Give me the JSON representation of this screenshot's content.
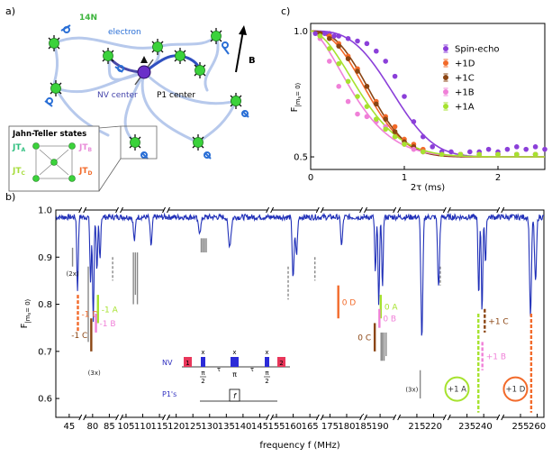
{
  "panel_labels": {
    "a": "a)",
    "b": "b)",
    "c": "c)"
  },
  "panel_a": {
    "labels": {
      "n14": "14N",
      "electron": "electron",
      "nv": "NV center",
      "p1": "P1 center",
      "b": "B"
    },
    "jahn_teller": {
      "title": "Jahn-Teller states",
      "states": [
        {
          "main": "JT",
          "sub": "A",
          "color": "#2fbf7f"
        },
        {
          "main": "JT",
          "sub": "B",
          "color": "#e88ad8"
        },
        {
          "main": "JT",
          "sub": "C",
          "color": "#a6dc3a"
        },
        {
          "main": "JT",
          "sub": "D",
          "color": "#f26a2a"
        }
      ]
    }
  },
  "chart_data": [
    {
      "id": "panel-c",
      "type": "scatter",
      "xlabel": "2τ (ms)",
      "ylabel_main": "F",
      "ylabel_sub": "|m",
      "ylabel_sub2": "s",
      "ylabel_tail": "= 0⟩",
      "xlim": [
        0,
        2.5
      ],
      "ylim": [
        0.45,
        1.03
      ],
      "xticks": [
        0,
        1,
        2
      ],
      "xtick_labels": [
        "0",
        "1",
        "2"
      ],
      "yticks": [
        0.5,
        1.0
      ],
      "ytick_labels": [
        "0.5",
        "1.0"
      ],
      "legend_position": "top-right",
      "series": [
        {
          "name": "Spin-echo",
          "color": "#8b3fd9",
          "T": 1.0,
          "n": 3,
          "x": [
            0.05,
            0.1,
            0.15,
            0.2,
            0.25,
            0.3,
            0.4,
            0.5,
            0.6,
            0.7,
            0.8,
            0.9,
            1.0,
            1.1,
            1.2,
            1.3,
            1.4,
            1.5,
            1.6,
            1.7,
            1.8,
            1.9,
            2.0,
            2.1,
            2.2,
            2.3,
            2.4,
            2.5
          ],
          "y": [
            0.99,
            0.99,
            0.99,
            0.99,
            0.98,
            0.98,
            0.97,
            0.96,
            0.95,
            0.92,
            0.88,
            0.82,
            0.74,
            0.64,
            0.58,
            0.54,
            0.52,
            0.52,
            0.51,
            0.52,
            0.52,
            0.53,
            0.52,
            0.53,
            0.54,
            0.53,
            0.54,
            0.53
          ]
        },
        {
          "name": "+1D",
          "color": "#f26a2a",
          "T": 0.72,
          "n": 2.3,
          "x": [
            0.1,
            0.2,
            0.3,
            0.4,
            0.5,
            0.6,
            0.7,
            0.8,
            0.9,
            1.0,
            1.1,
            1.2,
            1.4,
            1.6,
            1.8,
            2.0,
            2.2,
            2.4
          ],
          "y": [
            0.99,
            0.98,
            0.95,
            0.9,
            0.85,
            0.78,
            0.72,
            0.66,
            0.62,
            0.57,
            0.55,
            0.53,
            0.51,
            0.51,
            0.51,
            0.51,
            0.51,
            0.51
          ]
        },
        {
          "name": "+1C",
          "color": "#8b4513",
          "T": 0.75,
          "n": 2.5,
          "x": [
            0.1,
            0.2,
            0.3,
            0.4,
            0.5,
            0.6,
            0.7,
            0.8,
            0.9,
            1.0,
            1.1,
            1.2,
            1.4,
            1.6,
            1.8,
            2.0,
            2.2,
            2.4
          ],
          "y": [
            0.99,
            0.97,
            0.94,
            0.89,
            0.84,
            0.78,
            0.71,
            0.65,
            0.6,
            0.56,
            0.54,
            0.52,
            0.51,
            0.51,
            0.51,
            0.51,
            0.51,
            0.51
          ]
        },
        {
          "name": "+1B",
          "color": "#f080d8",
          "T": 0.58,
          "n": 1.6,
          "x": [
            0.1,
            0.2,
            0.3,
            0.4,
            0.5,
            0.6,
            0.7,
            0.8,
            0.9,
            1.0,
            1.1,
            1.2,
            1.4,
            1.6,
            1.8,
            2.0,
            2.2,
            2.4
          ],
          "y": [
            0.97,
            0.88,
            0.78,
            0.72,
            0.67,
            0.66,
            0.64,
            0.62,
            0.58,
            0.55,
            0.53,
            0.52,
            0.51,
            0.51,
            0.51,
            0.51,
            0.51,
            0.51
          ]
        },
        {
          "name": "+1A",
          "color": "#a6e22e",
          "T": 0.66,
          "n": 1.8,
          "x": [
            0.1,
            0.2,
            0.3,
            0.4,
            0.5,
            0.6,
            0.7,
            0.8,
            0.9,
            1.0,
            1.2,
            1.4,
            1.6,
            1.8,
            2.0,
            2.2,
            2.4
          ],
          "y": [
            0.98,
            0.93,
            0.87,
            0.8,
            0.74,
            0.7,
            0.65,
            0.61,
            0.58,
            0.55,
            0.52,
            0.51,
            0.51,
            0.51,
            0.51,
            0.51,
            0.51
          ]
        }
      ]
    },
    {
      "id": "panel-b",
      "type": "line",
      "xlabel": "frequency f (MHz)",
      "ylabel_main": "F",
      "ylabel_sub": "|m",
      "ylabel_sub2": "s",
      "ylabel_tail": "= 0⟩",
      "ylim": [
        0.56,
        1.0
      ],
      "yticks": [
        0.6,
        0.7,
        0.8,
        0.9,
        1.0
      ],
      "ytick_labels": [
        "0.6",
        "0.7",
        "0.8",
        "0.9",
        "1.0"
      ],
      "line_color": "#2030b8",
      "segments": [
        {
          "range": [
            41,
            49
          ],
          "ticks": [
            45
          ],
          "dips": [
            {
              "f": 47.5,
              "d": 0.16,
              "w": 0.3
            }
          ]
        },
        {
          "range": [
            77,
            88
          ],
          "ticks": [
            80,
            85
          ],
          "dips": [
            {
              "f": 79.4,
              "d": 0.14,
              "w": 0.3
            },
            {
              "f": 80.2,
              "d": 0.22,
              "w": 0.3
            },
            {
              "f": 81.3,
              "d": 0.12,
              "w": 0.3
            },
            {
              "f": 82.2,
              "d": 0.09,
              "w": 0.3
            }
          ]
        },
        {
          "range": [
            103,
            117
          ],
          "ticks": [
            105,
            110,
            115
          ],
          "dips": [
            {
              "f": 107.5,
              "d": 0.05,
              "w": 0.4
            },
            {
              "f": 112.5,
              "d": 0.06,
              "w": 0.4
            }
          ]
        },
        {
          "range": [
            117,
            148
          ],
          "ticks": [
            120,
            125,
            130,
            135,
            140,
            145
          ],
          "dips": [
            {
              "f": 127,
              "d": 0.03,
              "w": 0.6
            },
            {
              "f": 136,
              "d": 0.06,
              "w": 0.6
            }
          ]
        },
        {
          "range": [
            153,
            168
          ],
          "ticks": [
            155,
            160,
            165
          ],
          "dips": [
            {
              "f": 160,
              "d": 0.13,
              "w": 0.4
            },
            {
              "f": 161,
              "d": 0.08,
              "w": 0.4
            }
          ]
        },
        {
          "range": [
            172,
            185
          ],
          "ticks": [
            175,
            180
          ],
          "dips": [
            {
              "f": 178.5,
              "d": 0.06,
              "w": 0.4
            }
          ]
        },
        {
          "range": [
            185,
            195
          ],
          "ticks": [
            185,
            190
          ],
          "dips": [
            {
              "f": 188.6,
              "d": 0.12,
              "w": 0.3
            },
            {
              "f": 189.6,
              "d": 0.19,
              "w": 0.3
            },
            {
              "f": 190.7,
              "d": 0.15,
              "w": 0.3
            }
          ]
        },
        {
          "range": [
            209,
            224
          ],
          "ticks": [
            215,
            220
          ],
          "dips": [
            {
              "f": 216.5,
              "d": 0.26,
              "w": 0.4
            },
            {
              "f": 221.5,
              "d": 0.15,
              "w": 0.4
            }
          ]
        },
        {
          "range": [
            229,
            245
          ],
          "ticks": [
            235,
            240
          ],
          "dips": [
            {
              "f": 238.5,
              "d": 0.17,
              "w": 0.3
            },
            {
              "f": 239.5,
              "d": 0.2,
              "w": 0.3
            },
            {
              "f": 240.5,
              "d": 0.1,
              "w": 0.3
            }
          ]
        },
        {
          "range": [
            249,
            262
          ],
          "ticks": [
            255,
            260
          ],
          "dips": [
            {
              "f": 258,
              "d": 0.21,
              "w": 0.4
            },
            {
              "f": 259.5,
              "d": 0.14,
              "w": 0.4
            }
          ]
        }
      ],
      "annotations": [
        {
          "text": "-1 D",
          "color": "#f26a2a",
          "f": 47.6,
          "y0": 0.82,
          "y1": 0.74,
          "dashed": true,
          "side": "right"
        },
        {
          "text": "-1 C",
          "color": "#8b4513",
          "f": 79.6,
          "y0": 0.77,
          "y1": 0.7,
          "dashed": false,
          "side": "left"
        },
        {
          "text": "-1 A",
          "color": "#a6e22e",
          "f": 81.6,
          "y0": 0.82,
          "y1": 0.76,
          "dashed": false,
          "side": "right"
        },
        {
          "text": "-1 B",
          "color": "#f080d8",
          "f": 81.0,
          "y0": 0.78,
          "y1": 0.74,
          "dashed": false,
          "side": "right"
        },
        {
          "text": "0 D",
          "color": "#f26a2a",
          "f": 177.5,
          "y0": 0.84,
          "y1": 0.77,
          "dashed": false,
          "side": "right"
        },
        {
          "text": "0 C",
          "color": "#8b4513",
          "f": 188.4,
          "y0": 0.76,
          "y1": 0.7,
          "dashed": false,
          "side": "left"
        },
        {
          "text": "0 A",
          "color": "#a6e22e",
          "f": 190.2,
          "y0": 0.82,
          "y1": 0.77,
          "dashed": false,
          "side": "right"
        },
        {
          "text": "0 B",
          "color": "#f080d8",
          "f": 189.8,
          "y0": 0.79,
          "y1": 0.75,
          "dashed": false,
          "side": "right"
        },
        {
          "text": "+1 C",
          "color": "#8b4513",
          "f": 240.3,
          "y0": 0.79,
          "y1": 0.74,
          "dashed": true,
          "side": "right"
        },
        {
          "text": "+1 B",
          "color": "#f080d8",
          "f": 239.6,
          "y0": 0.72,
          "y1": 0.66,
          "dashed": true,
          "side": "right"
        }
      ],
      "grey_markers": [
        {
          "f": 46.0,
          "y0": 0.92,
          "y1": 0.88,
          "dashed": false
        },
        {
          "f": 78.7,
          "y0": 0.88,
          "y1": 0.72,
          "dashed": false
        },
        {
          "f": 86.0,
          "y0": 0.9,
          "y1": 0.85,
          "dashed": true
        },
        {
          "f": 107.2,
          "y0": 0.91,
          "y1": 0.8,
          "dashed": false
        },
        {
          "f": 107.8,
          "y0": 0.91,
          "y1": 0.82,
          "dashed": false
        },
        {
          "f": 108.4,
          "y0": 0.91,
          "y1": 0.8,
          "dashed": false
        },
        {
          "f": 127.5,
          "y0": 0.94,
          "y1": 0.91,
          "dashed": false
        },
        {
          "f": 128.0,
          "y0": 0.94,
          "y1": 0.91,
          "dashed": false
        },
        {
          "f": 128.5,
          "y0": 0.94,
          "y1": 0.91,
          "dashed": false
        },
        {
          "f": 129.0,
          "y0": 0.94,
          "y1": 0.91,
          "dashed": false
        },
        {
          "f": 158.5,
          "y0": 0.88,
          "y1": 0.81,
          "dashed": true
        },
        {
          "f": 166.5,
          "y0": 0.9,
          "y1": 0.85,
          "dashed": true
        },
        {
          "f": 190.3,
          "y0": 0.74,
          "y1": 0.68,
          "dashed": false
        },
        {
          "f": 190.7,
          "y0": 0.74,
          "y1": 0.68,
          "dashed": false
        },
        {
          "f": 191.2,
          "y0": 0.74,
          "y1": 0.68,
          "dashed": false
        },
        {
          "f": 191.8,
          "y0": 0.74,
          "y1": 0.69,
          "dashed": false
        },
        {
          "f": 216.0,
          "y0": 0.66,
          "y1": 0.6,
          "dashed": false
        },
        {
          "f": 222.0,
          "y0": 0.88,
          "y1": 0.84,
          "dashed": true
        }
      ],
      "multiplicity": [
        {
          "text": "(2x)",
          "f": 46.0,
          "y": 0.86
        },
        {
          "text": "(3x)",
          "f": 80.5,
          "y": 0.65
        },
        {
          "text": "(3x)",
          "f": 213.5,
          "y": 0.615
        }
      ],
      "circles": [
        {
          "text": "+1 A",
          "color": "#a6e22e",
          "line_color": "#a6e22e",
          "f": 232.0,
          "y": 0.62,
          "line_f": 238.4
        },
        {
          "text": "+1 D",
          "color": "#f26a2a",
          "line_color": "#f26a2a",
          "f": 253.5,
          "y": 0.62,
          "line_f": 258.2
        }
      ],
      "pulse": {
        "nv_label": "NV",
        "p1_label": "P1's",
        "start_label": "1",
        "end_label": "2",
        "x_label": "x",
        "tau_label": "τ",
        "pi_label": "π",
        "pi2_num": "π",
        "pi2_den": "2",
        "f_label": "f"
      }
    }
  ]
}
